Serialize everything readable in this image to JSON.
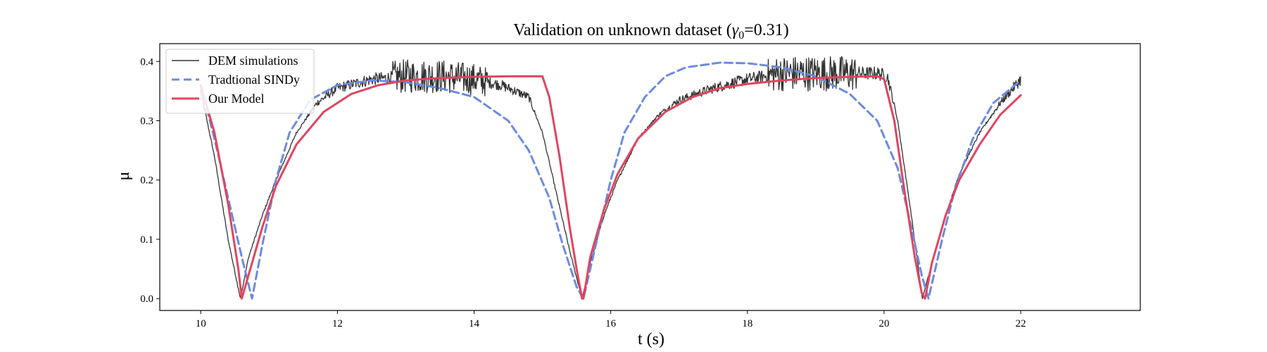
{
  "chart_data": {
    "type": "line",
    "title_prefix": "Validation on unknown dataset (",
    "title_symbol": "γ",
    "title_subscript": "0",
    "title_suffix": "=0.31)",
    "xlabel": "t (s)",
    "ylabel": "μ",
    "xlim": [
      9.4,
      23.75
    ],
    "ylim": [
      -0.02,
      0.43
    ],
    "xticks": [
      10,
      12,
      14,
      16,
      18,
      20,
      22
    ],
    "yticks": [
      0.0,
      0.1,
      0.2,
      0.3,
      0.4
    ],
    "xtick_labels": [
      "10",
      "12",
      "14",
      "16",
      "18",
      "20",
      "22"
    ],
    "ytick_labels": [
      "0.0",
      "0.1",
      "0.2",
      "0.3",
      "0.4"
    ],
    "grid": false,
    "legend_position": "top-left",
    "series": [
      {
        "name": "DEM simulations",
        "color": "#333333",
        "style": "solid",
        "width": 1.3,
        "noisy": true,
        "x": [
          10.0,
          10.2,
          10.4,
          10.58,
          10.7,
          10.9,
          11.1,
          11.4,
          11.7,
          12.0,
          12.5,
          13.0,
          13.5,
          14.0,
          14.4,
          14.8,
          15.0,
          15.2,
          15.4,
          15.58,
          15.7,
          15.9,
          16.1,
          16.4,
          16.7,
          17.0,
          17.5,
          18.0,
          18.5,
          19.0,
          19.5,
          19.9,
          20.05,
          20.2,
          20.4,
          20.56,
          20.7,
          20.9,
          21.1,
          21.4,
          21.7,
          22.0
        ],
        "y": [
          0.35,
          0.24,
          0.1,
          0.0,
          0.07,
          0.14,
          0.2,
          0.28,
          0.33,
          0.355,
          0.37,
          0.375,
          0.375,
          0.37,
          0.36,
          0.34,
          0.28,
          0.18,
          0.08,
          0.0,
          0.06,
          0.14,
          0.2,
          0.27,
          0.31,
          0.335,
          0.355,
          0.37,
          0.38,
          0.38,
          0.38,
          0.38,
          0.375,
          0.3,
          0.14,
          0.0,
          0.06,
          0.14,
          0.21,
          0.28,
          0.33,
          0.37
        ]
      },
      {
        "name": "Tradtional SINDy",
        "color": "#6b8be0",
        "style": "dashed",
        "width": 3,
        "noisy": false,
        "x": [
          10.0,
          10.2,
          10.4,
          10.6,
          10.75,
          10.9,
          11.1,
          11.3,
          11.6,
          12.0,
          12.5,
          13.0,
          13.5,
          14.0,
          14.5,
          14.8,
          15.1,
          15.3,
          15.5,
          15.6,
          15.8,
          16.0,
          16.2,
          16.5,
          16.8,
          17.1,
          17.6,
          18.0,
          18.5,
          19.0,
          19.5,
          19.9,
          20.2,
          20.4,
          20.55,
          20.65,
          20.85,
          21.05,
          21.3,
          21.6,
          22.0
        ],
        "y": [
          0.36,
          0.27,
          0.17,
          0.07,
          0.0,
          0.09,
          0.2,
          0.28,
          0.335,
          0.36,
          0.368,
          0.365,
          0.355,
          0.34,
          0.3,
          0.25,
          0.17,
          0.09,
          0.02,
          0.0,
          0.1,
          0.2,
          0.28,
          0.34,
          0.375,
          0.39,
          0.398,
          0.397,
          0.39,
          0.375,
          0.345,
          0.3,
          0.22,
          0.12,
          0.04,
          0.0,
          0.1,
          0.19,
          0.27,
          0.33,
          0.368
        ]
      },
      {
        "name": "Our Model",
        "color": "#e0455f",
        "style": "solid",
        "width": 3,
        "noisy": false,
        "x": [
          10.0,
          10.2,
          10.4,
          10.55,
          10.6,
          10.7,
          10.9,
          11.1,
          11.4,
          11.8,
          12.2,
          12.6,
          13.0,
          13.5,
          14.0,
          14.5,
          15.0,
          15.1,
          15.25,
          15.4,
          15.5,
          15.58,
          15.6,
          15.7,
          15.9,
          16.1,
          16.4,
          16.8,
          17.2,
          17.6,
          18.0,
          18.5,
          19.0,
          19.5,
          19.9,
          20.0,
          20.15,
          20.3,
          20.45,
          20.55,
          20.6,
          20.7,
          20.9,
          21.1,
          21.4,
          21.7,
          22.0
        ],
        "y": [
          0.36,
          0.28,
          0.16,
          0.05,
          0.0,
          0.04,
          0.12,
          0.19,
          0.26,
          0.315,
          0.345,
          0.36,
          0.368,
          0.372,
          0.374,
          0.375,
          0.375,
          0.34,
          0.24,
          0.12,
          0.05,
          0.0,
          0.0,
          0.07,
          0.15,
          0.21,
          0.27,
          0.315,
          0.34,
          0.355,
          0.362,
          0.368,
          0.372,
          0.374,
          0.375,
          0.37,
          0.3,
          0.18,
          0.07,
          0.01,
          0.0,
          0.06,
          0.14,
          0.2,
          0.26,
          0.31,
          0.343
        ]
      }
    ]
  }
}
